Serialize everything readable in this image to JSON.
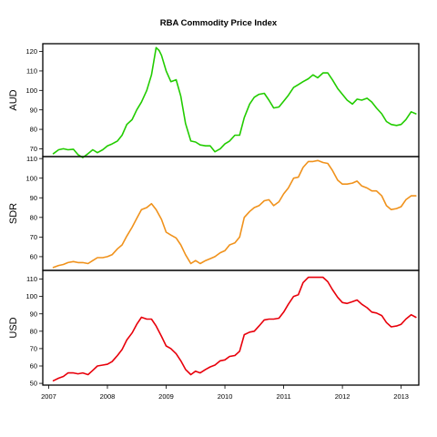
{
  "chart_data": {
    "type": "line",
    "title": "RBA Commodity Price Index",
    "x_axis": {
      "ticks": [
        2007,
        2008,
        2009,
        2010,
        2011,
        2012,
        2013
      ],
      "tick_labels": [
        "2007",
        "2008",
        "2009",
        "2010",
        "2011",
        "2012",
        "2013"
      ],
      "xlim": [
        2006.9,
        2013.3
      ]
    },
    "grid": false,
    "legend": "none",
    "panels": [
      {
        "label": "AUD",
        "color": "#22cc00",
        "ylim": [
          66,
          124
        ],
        "y_ticks": [
          70,
          80,
          90,
          100,
          110,
          120
        ],
        "y_tick_labels": [
          "70",
          "80",
          "90",
          "100",
          "110",
          "120"
        ],
        "series": [
          {
            "x": 2007.08,
            "y": 67.5
          },
          {
            "x": 2007.17,
            "y": 69.5
          },
          {
            "x": 2007.25,
            "y": 70
          },
          {
            "x": 2007.33,
            "y": 69.5
          },
          {
            "x": 2007.42,
            "y": 69.8
          },
          {
            "x": 2007.5,
            "y": 67
          },
          {
            "x": 2007.58,
            "y": 65.5
          },
          {
            "x": 2007.67,
            "y": 67.5
          },
          {
            "x": 2007.75,
            "y": 69.5
          },
          {
            "x": 2007.83,
            "y": 68
          },
          {
            "x": 2007.92,
            "y": 69.5
          },
          {
            "x": 2008.0,
            "y": 71.5
          },
          {
            "x": 2008.08,
            "y": 72.5
          },
          {
            "x": 2008.17,
            "y": 74
          },
          {
            "x": 2008.25,
            "y": 77
          },
          {
            "x": 2008.33,
            "y": 82.5
          },
          {
            "x": 2008.42,
            "y": 85
          },
          {
            "x": 2008.5,
            "y": 90
          },
          {
            "x": 2008.58,
            "y": 94
          },
          {
            "x": 2008.67,
            "y": 100
          },
          {
            "x": 2008.75,
            "y": 108
          },
          {
            "x": 2008.83,
            "y": 122
          },
          {
            "x": 2008.88,
            "y": 120.5
          },
          {
            "x": 2008.92,
            "y": 118
          },
          {
            "x": 2009.0,
            "y": 110
          },
          {
            "x": 2009.08,
            "y": 104.5
          },
          {
            "x": 2009.17,
            "y": 105.5
          },
          {
            "x": 2009.25,
            "y": 97
          },
          {
            "x": 2009.33,
            "y": 83
          },
          {
            "x": 2009.42,
            "y": 74
          },
          {
            "x": 2009.5,
            "y": 73.5
          },
          {
            "x": 2009.58,
            "y": 72
          },
          {
            "x": 2009.67,
            "y": 71.5
          },
          {
            "x": 2009.75,
            "y": 71.5
          },
          {
            "x": 2009.83,
            "y": 68.5
          },
          {
            "x": 2009.92,
            "y": 70
          },
          {
            "x": 2010.0,
            "y": 72.5
          },
          {
            "x": 2010.08,
            "y": 74
          },
          {
            "x": 2010.17,
            "y": 77
          },
          {
            "x": 2010.25,
            "y": 77
          },
          {
            "x": 2010.33,
            "y": 86
          },
          {
            "x": 2010.42,
            "y": 93
          },
          {
            "x": 2010.5,
            "y": 96.5
          },
          {
            "x": 2010.58,
            "y": 98
          },
          {
            "x": 2010.67,
            "y": 98.5
          },
          {
            "x": 2010.75,
            "y": 95
          },
          {
            "x": 2010.83,
            "y": 91
          },
          {
            "x": 2010.92,
            "y": 91.5
          },
          {
            "x": 2011.0,
            "y": 94.5
          },
          {
            "x": 2011.08,
            "y": 97.5
          },
          {
            "x": 2011.17,
            "y": 101.5
          },
          {
            "x": 2011.25,
            "y": 103
          },
          {
            "x": 2011.33,
            "y": 104.5
          },
          {
            "x": 2011.42,
            "y": 106
          },
          {
            "x": 2011.5,
            "y": 108
          },
          {
            "x": 2011.58,
            "y": 106.5
          },
          {
            "x": 2011.67,
            "y": 109
          },
          {
            "x": 2011.75,
            "y": 109
          },
          {
            "x": 2011.83,
            "y": 105.5
          },
          {
            "x": 2011.92,
            "y": 101
          },
          {
            "x": 2012.0,
            "y": 98
          },
          {
            "x": 2012.08,
            "y": 95
          },
          {
            "x": 2012.17,
            "y": 93
          },
          {
            "x": 2012.25,
            "y": 95.5
          },
          {
            "x": 2012.33,
            "y": 95
          },
          {
            "x": 2012.42,
            "y": 96
          },
          {
            "x": 2012.5,
            "y": 94
          },
          {
            "x": 2012.58,
            "y": 91
          },
          {
            "x": 2012.67,
            "y": 88
          },
          {
            "x": 2012.75,
            "y": 84
          },
          {
            "x": 2012.83,
            "y": 82.5
          },
          {
            "x": 2012.92,
            "y": 82
          },
          {
            "x": 2013.0,
            "y": 82.5
          },
          {
            "x": 2013.08,
            "y": 85
          },
          {
            "x": 2013.17,
            "y": 89
          },
          {
            "x": 2013.25,
            "y": 88
          }
        ]
      },
      {
        "label": "SDR",
        "color": "#f0921c",
        "ylim": [
          53,
          111
        ],
        "y_ticks": [
          60,
          70,
          80,
          90,
          100,
          110
        ],
        "y_tick_labels": [
          "60",
          "70",
          "80",
          "90",
          "100",
          "110"
        ],
        "series": [
          {
            "x": 2007.08,
            "y": 54.5
          },
          {
            "x": 2007.17,
            "y": 55.5
          },
          {
            "x": 2007.25,
            "y": 56
          },
          {
            "x": 2007.33,
            "y": 57
          },
          {
            "x": 2007.42,
            "y": 57.5
          },
          {
            "x": 2007.5,
            "y": 57
          },
          {
            "x": 2007.58,
            "y": 57
          },
          {
            "x": 2007.67,
            "y": 56.5
          },
          {
            "x": 2007.75,
            "y": 58
          },
          {
            "x": 2007.83,
            "y": 59.5
          },
          {
            "x": 2007.92,
            "y": 59.5
          },
          {
            "x": 2008.0,
            "y": 60
          },
          {
            "x": 2008.08,
            "y": 61
          },
          {
            "x": 2008.17,
            "y": 64
          },
          {
            "x": 2008.25,
            "y": 66
          },
          {
            "x": 2008.33,
            "y": 70.5
          },
          {
            "x": 2008.42,
            "y": 75
          },
          {
            "x": 2008.5,
            "y": 79.5
          },
          {
            "x": 2008.58,
            "y": 84
          },
          {
            "x": 2008.67,
            "y": 85
          },
          {
            "x": 2008.75,
            "y": 87
          },
          {
            "x": 2008.83,
            "y": 84
          },
          {
            "x": 2008.92,
            "y": 79
          },
          {
            "x": 2009.0,
            "y": 72.5
          },
          {
            "x": 2009.08,
            "y": 71
          },
          {
            "x": 2009.17,
            "y": 69.5
          },
          {
            "x": 2009.25,
            "y": 66
          },
          {
            "x": 2009.33,
            "y": 61
          },
          {
            "x": 2009.42,
            "y": 56.5
          },
          {
            "x": 2009.5,
            "y": 58
          },
          {
            "x": 2009.58,
            "y": 56.5
          },
          {
            "x": 2009.67,
            "y": 58
          },
          {
            "x": 2009.75,
            "y": 59
          },
          {
            "x": 2009.83,
            "y": 60
          },
          {
            "x": 2009.92,
            "y": 62
          },
          {
            "x": 2010.0,
            "y": 63
          },
          {
            "x": 2010.08,
            "y": 66
          },
          {
            "x": 2010.17,
            "y": 67
          },
          {
            "x": 2010.25,
            "y": 70
          },
          {
            "x": 2010.33,
            "y": 80
          },
          {
            "x": 2010.42,
            "y": 83
          },
          {
            "x": 2010.5,
            "y": 85
          },
          {
            "x": 2010.58,
            "y": 86
          },
          {
            "x": 2010.67,
            "y": 88.5
          },
          {
            "x": 2010.75,
            "y": 89
          },
          {
            "x": 2010.83,
            "y": 86
          },
          {
            "x": 2010.92,
            "y": 88
          },
          {
            "x": 2011.0,
            "y": 92
          },
          {
            "x": 2011.08,
            "y": 95
          },
          {
            "x": 2011.17,
            "y": 100
          },
          {
            "x": 2011.25,
            "y": 100.5
          },
          {
            "x": 2011.33,
            "y": 105.5
          },
          {
            "x": 2011.42,
            "y": 108.5
          },
          {
            "x": 2011.5,
            "y": 108.5
          },
          {
            "x": 2011.58,
            "y": 109
          },
          {
            "x": 2011.67,
            "y": 108
          },
          {
            "x": 2011.75,
            "y": 107.5
          },
          {
            "x": 2011.83,
            "y": 104
          },
          {
            "x": 2011.92,
            "y": 99
          },
          {
            "x": 2012.0,
            "y": 97
          },
          {
            "x": 2012.08,
            "y": 97
          },
          {
            "x": 2012.17,
            "y": 97.5
          },
          {
            "x": 2012.25,
            "y": 98.5
          },
          {
            "x": 2012.33,
            "y": 96
          },
          {
            "x": 2012.42,
            "y": 95
          },
          {
            "x": 2012.5,
            "y": 93.5
          },
          {
            "x": 2012.58,
            "y": 93.5
          },
          {
            "x": 2012.67,
            "y": 91
          },
          {
            "x": 2012.75,
            "y": 86
          },
          {
            "x": 2012.83,
            "y": 84
          },
          {
            "x": 2012.92,
            "y": 84.5
          },
          {
            "x": 2013.0,
            "y": 85.5
          },
          {
            "x": 2013.08,
            "y": 89
          },
          {
            "x": 2013.17,
            "y": 91
          },
          {
            "x": 2013.25,
            "y": 91
          }
        ]
      },
      {
        "label": "USD",
        "color": "#e8000b",
        "ylim": [
          49,
          115
        ],
        "y_ticks": [
          50,
          60,
          70,
          80,
          90,
          100,
          110
        ],
        "y_tick_labels": [
          "50",
          "60",
          "70",
          "80",
          "90",
          "100",
          "110"
        ],
        "series": [
          {
            "x": 2007.08,
            "y": 51.5
          },
          {
            "x": 2007.17,
            "y": 53
          },
          {
            "x": 2007.25,
            "y": 54
          },
          {
            "x": 2007.33,
            "y": 56
          },
          {
            "x": 2007.42,
            "y": 56
          },
          {
            "x": 2007.5,
            "y": 55.5
          },
          {
            "x": 2007.58,
            "y": 56
          },
          {
            "x": 2007.67,
            "y": 55
          },
          {
            "x": 2007.75,
            "y": 57.5
          },
          {
            "x": 2007.83,
            "y": 60
          },
          {
            "x": 2007.92,
            "y": 60.5
          },
          {
            "x": 2008.0,
            "y": 61
          },
          {
            "x": 2008.08,
            "y": 62.5
          },
          {
            "x": 2008.17,
            "y": 66
          },
          {
            "x": 2008.25,
            "y": 69.5
          },
          {
            "x": 2008.33,
            "y": 75
          },
          {
            "x": 2008.42,
            "y": 79
          },
          {
            "x": 2008.5,
            "y": 84
          },
          {
            "x": 2008.58,
            "y": 88
          },
          {
            "x": 2008.67,
            "y": 87
          },
          {
            "x": 2008.75,
            "y": 87
          },
          {
            "x": 2008.83,
            "y": 83
          },
          {
            "x": 2008.92,
            "y": 77
          },
          {
            "x": 2009.0,
            "y": 71.5
          },
          {
            "x": 2009.08,
            "y": 70
          },
          {
            "x": 2009.17,
            "y": 67
          },
          {
            "x": 2009.25,
            "y": 63
          },
          {
            "x": 2009.33,
            "y": 58
          },
          {
            "x": 2009.42,
            "y": 55
          },
          {
            "x": 2009.5,
            "y": 57
          },
          {
            "x": 2009.58,
            "y": 56
          },
          {
            "x": 2009.67,
            "y": 58
          },
          {
            "x": 2009.75,
            "y": 59.5
          },
          {
            "x": 2009.83,
            "y": 60.5
          },
          {
            "x": 2009.92,
            "y": 63
          },
          {
            "x": 2010.0,
            "y": 63.5
          },
          {
            "x": 2010.08,
            "y": 65.5
          },
          {
            "x": 2010.17,
            "y": 66
          },
          {
            "x": 2010.25,
            "y": 68.5
          },
          {
            "x": 2010.33,
            "y": 78
          },
          {
            "x": 2010.42,
            "y": 79.5
          },
          {
            "x": 2010.5,
            "y": 80
          },
          {
            "x": 2010.58,
            "y": 83
          },
          {
            "x": 2010.67,
            "y": 86.5
          },
          {
            "x": 2010.75,
            "y": 87
          },
          {
            "x": 2010.83,
            "y": 87
          },
          {
            "x": 2010.92,
            "y": 87.5
          },
          {
            "x": 2011.0,
            "y": 91
          },
          {
            "x": 2011.08,
            "y": 95.5
          },
          {
            "x": 2011.17,
            "y": 100
          },
          {
            "x": 2011.25,
            "y": 101
          },
          {
            "x": 2011.33,
            "y": 108
          },
          {
            "x": 2011.42,
            "y": 111
          },
          {
            "x": 2011.5,
            "y": 111
          },
          {
            "x": 2011.58,
            "y": 111
          },
          {
            "x": 2011.67,
            "y": 111
          },
          {
            "x": 2011.75,
            "y": 108.5
          },
          {
            "x": 2011.83,
            "y": 104
          },
          {
            "x": 2011.92,
            "y": 99.5
          },
          {
            "x": 2012.0,
            "y": 96.5
          },
          {
            "x": 2012.08,
            "y": 96
          },
          {
            "x": 2012.17,
            "y": 97
          },
          {
            "x": 2012.25,
            "y": 98
          },
          {
            "x": 2012.33,
            "y": 95.5
          },
          {
            "x": 2012.42,
            "y": 93.5
          },
          {
            "x": 2012.5,
            "y": 91
          },
          {
            "x": 2012.58,
            "y": 90.5
          },
          {
            "x": 2012.67,
            "y": 89
          },
          {
            "x": 2012.75,
            "y": 85
          },
          {
            "x": 2012.83,
            "y": 82.5
          },
          {
            "x": 2012.92,
            "y": 83
          },
          {
            "x": 2013.0,
            "y": 84
          },
          {
            "x": 2013.08,
            "y": 87
          },
          {
            "x": 2013.17,
            "y": 89.5
          },
          {
            "x": 2013.25,
            "y": 88
          }
        ]
      }
    ]
  }
}
